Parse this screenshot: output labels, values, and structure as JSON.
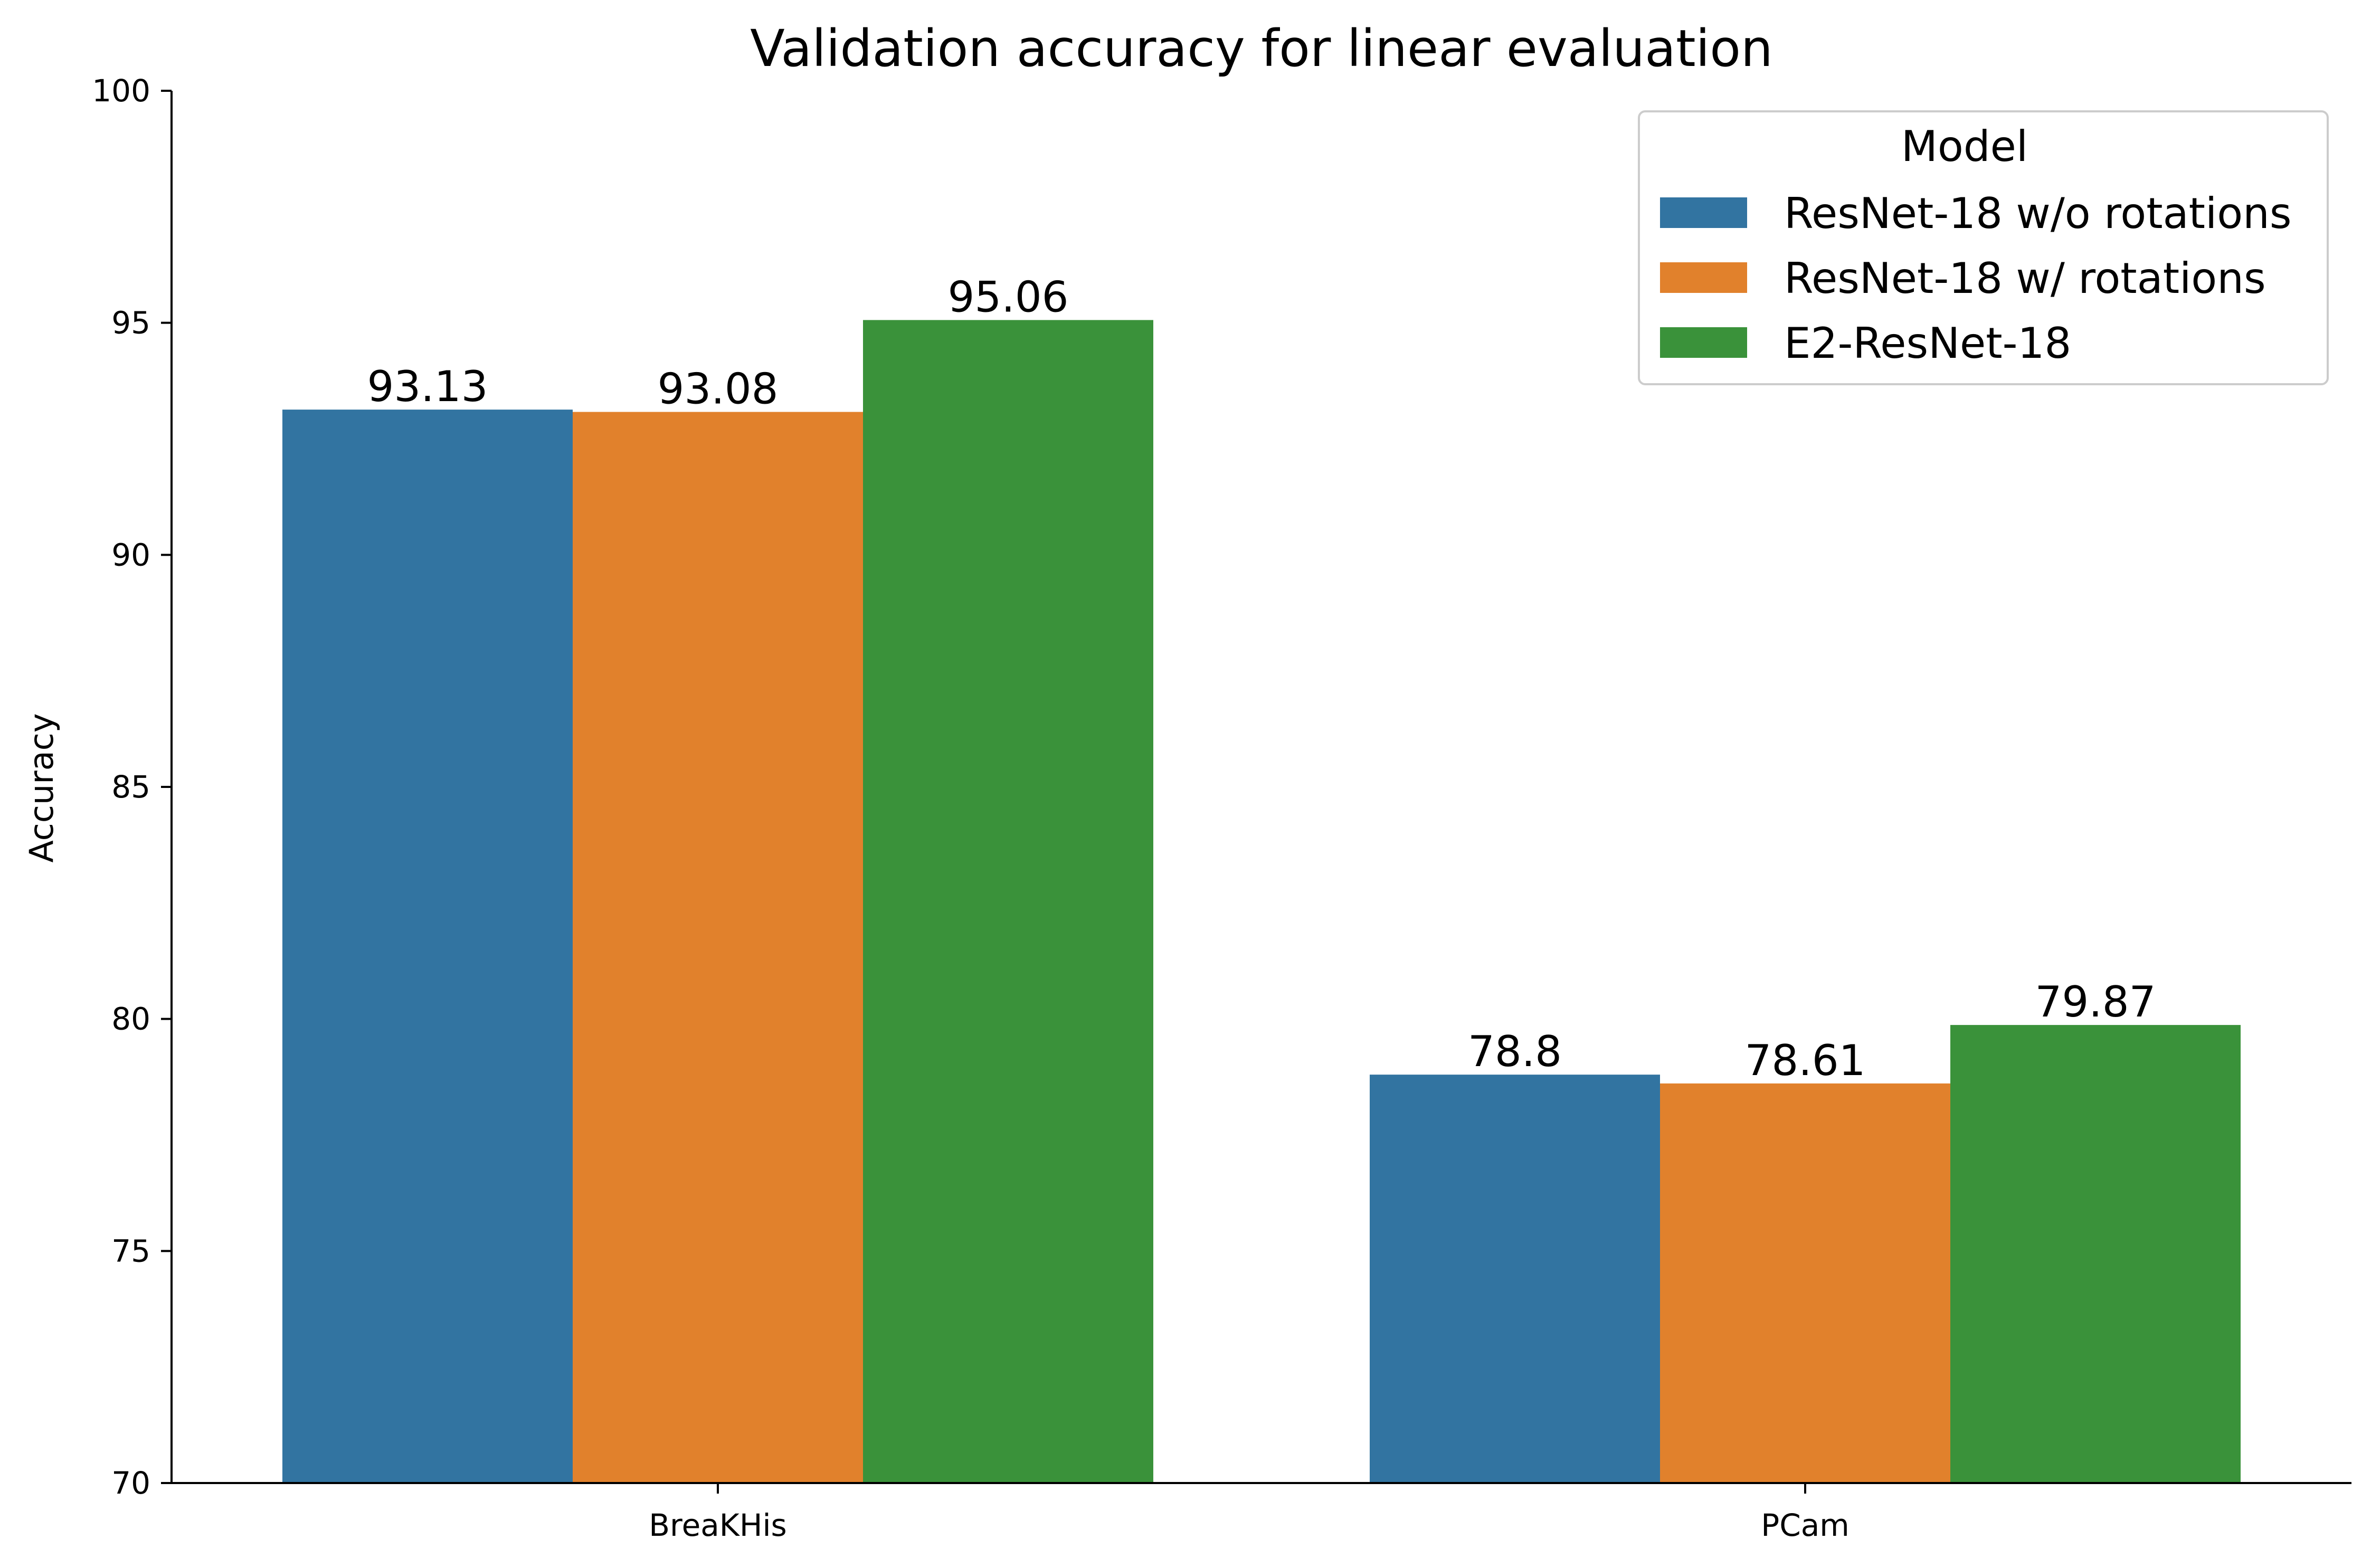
{
  "chart_data": {
    "type": "bar",
    "title": "Validation accuracy for linear evaluation",
    "xlabel": "",
    "ylabel": "Accuracy",
    "ylim": [
      70,
      100
    ],
    "yticks": [
      70,
      75,
      80,
      85,
      90,
      95,
      100
    ],
    "categories": [
      "BreaKHis",
      "PCam"
    ],
    "series": [
      {
        "name": "ResNet-18 w/o rotations",
        "color": "#3274a1",
        "values": [
          93.13,
          78.8
        ],
        "labels": [
          "93.13",
          "78.8"
        ]
      },
      {
        "name": "ResNet-18 w/ rotations",
        "color": "#e1812c",
        "values": [
          93.08,
          78.61
        ],
        "labels": [
          "93.08",
          "78.61"
        ]
      },
      {
        "name": "E2-ResNet-18",
        "color": "#3a923a",
        "values": [
          95.06,
          79.87
        ],
        "labels": [
          "95.06",
          "79.87"
        ]
      }
    ],
    "legend": {
      "title": "Model",
      "position": "top-right"
    },
    "grid": false
  }
}
